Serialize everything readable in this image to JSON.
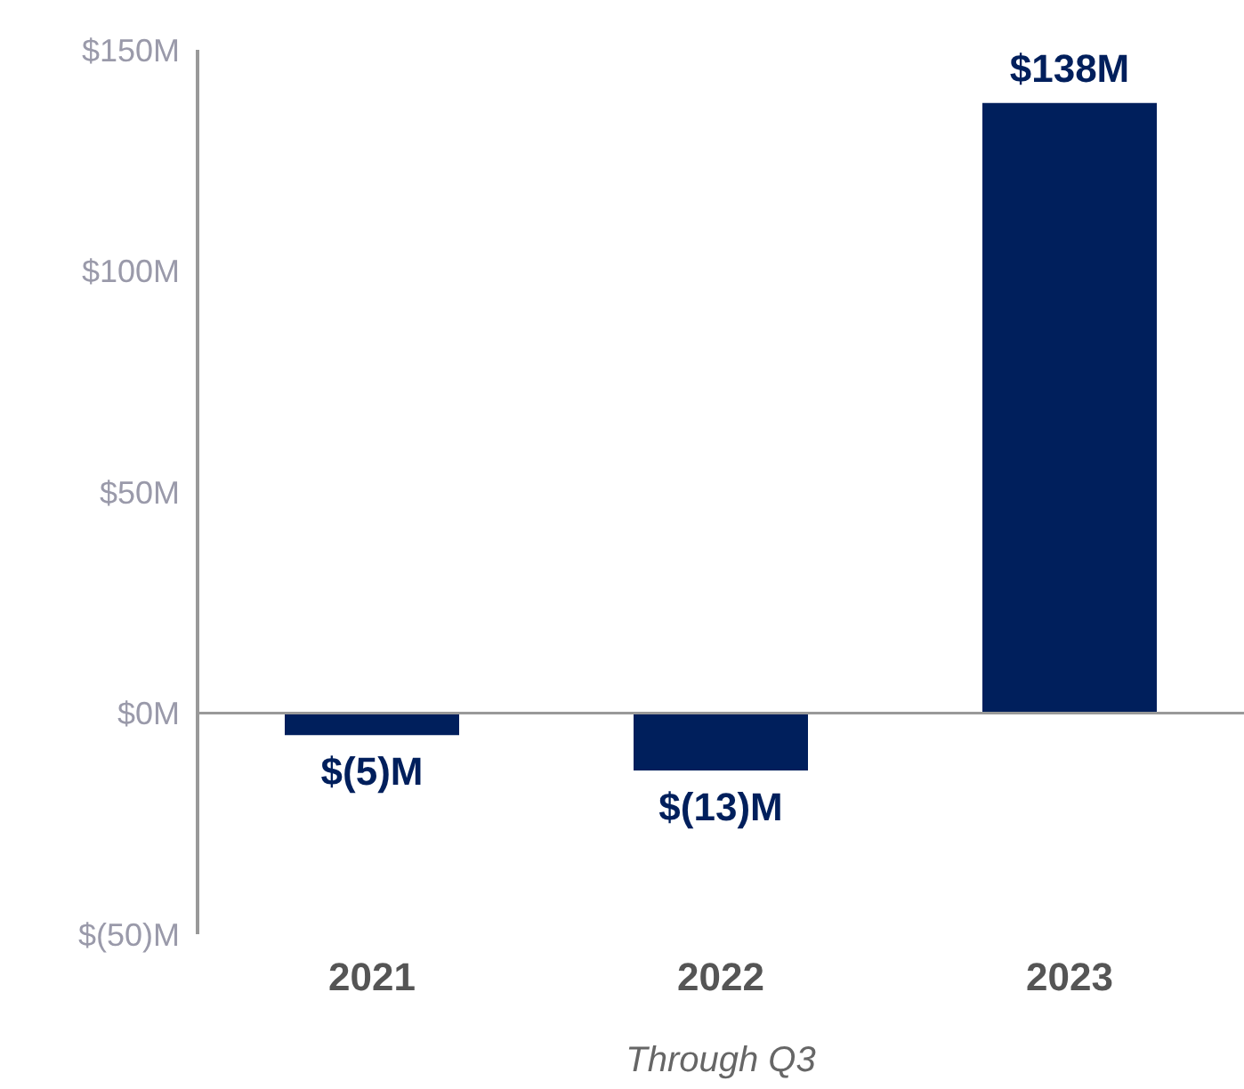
{
  "chart_data": {
    "type": "bar",
    "xlabel": "Through Q3",
    "categories": [
      "2021",
      "2022",
      "2023"
    ],
    "values": [
      -5,
      -13,
      138
    ],
    "color": "#001f5c",
    "value_labels": [
      "$(5)M",
      "$(13)M",
      "$138M"
    ],
    "ylim": [
      -50,
      150
    ],
    "yticks": [
      {
        "value": -50,
        "label": "$(50)M"
      },
      {
        "value": 0,
        "label": "$0M"
      },
      {
        "value": 50,
        "label": "$50M"
      },
      {
        "value": 100,
        "label": "$100M"
      },
      {
        "value": 150,
        "label": "$150M"
      }
    ],
    "ref_lines": [
      {
        "axis": "y",
        "value": 0,
        "color": "#999999"
      }
    ],
    "grid": false,
    "legend": false
  }
}
